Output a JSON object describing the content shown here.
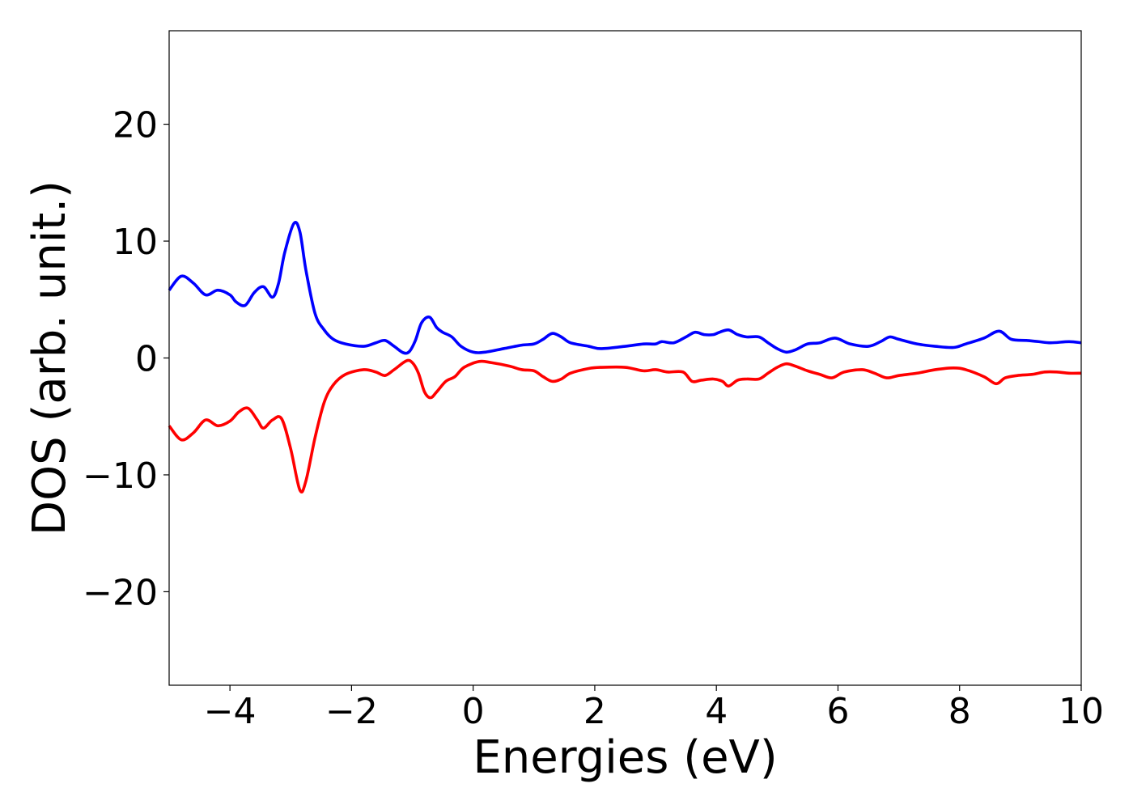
{
  "chart_data": {
    "type": "line",
    "title": "",
    "xlabel": "Energies (eV)",
    "ylabel": "DOS (arb. unit.)",
    "xlim": [
      -5,
      10
    ],
    "ylim": [
      -28,
      28
    ],
    "xticks": [
      -4,
      -2,
      0,
      2,
      4,
      6,
      8,
      10
    ],
    "xtick_labels": [
      "−4",
      "−2",
      "0",
      "2",
      "4",
      "6",
      "8",
      "10"
    ],
    "yticks": [
      -20,
      -10,
      0,
      10,
      20
    ],
    "ytick_labels": [
      "−20",
      "−10",
      "0",
      "10",
      "20"
    ],
    "grid": false,
    "legend": "none",
    "series": [
      {
        "color": "#0000ff",
        "x": [
          -5.0,
          -4.8,
          -4.6,
          -4.4,
          -4.2,
          -4.0,
          -3.9,
          -3.75,
          -3.6,
          -3.45,
          -3.3,
          -3.2,
          -3.1,
          -2.95,
          -2.85,
          -2.75,
          -2.6,
          -2.45,
          -2.3,
          -2.1,
          -1.8,
          -1.6,
          -1.45,
          -1.3,
          -1.15,
          -1.05,
          -0.95,
          -0.85,
          -0.72,
          -0.6,
          -0.5,
          -0.35,
          -0.2,
          0.0,
          0.2,
          0.5,
          0.8,
          1.0,
          1.15,
          1.3,
          1.45,
          1.6,
          1.9,
          2.1,
          2.5,
          2.8,
          3.0,
          3.1,
          3.3,
          3.5,
          3.65,
          3.8,
          3.95,
          4.05,
          4.2,
          4.35,
          4.5,
          4.7,
          4.85,
          5.0,
          5.15,
          5.3,
          5.5,
          5.7,
          5.95,
          6.2,
          6.5,
          6.7,
          6.85,
          7.0,
          7.3,
          7.6,
          7.9,
          8.1,
          8.4,
          8.65,
          8.85,
          9.1,
          9.3,
          9.5,
          9.8,
          10.0
        ],
        "y": [
          5.8,
          7.0,
          6.4,
          5.4,
          5.8,
          5.4,
          4.8,
          4.5,
          5.6,
          6.1,
          5.2,
          6.4,
          9.0,
          11.5,
          10.8,
          7.5,
          3.8,
          2.4,
          1.6,
          1.2,
          1.0,
          1.3,
          1.5,
          1.0,
          0.45,
          0.55,
          1.5,
          3.0,
          3.5,
          2.6,
          2.2,
          1.8,
          1.0,
          0.5,
          0.5,
          0.8,
          1.1,
          1.2,
          1.6,
          2.1,
          1.8,
          1.3,
          1.0,
          0.8,
          1.0,
          1.2,
          1.2,
          1.4,
          1.3,
          1.8,
          2.2,
          2.0,
          2.0,
          2.2,
          2.4,
          2.0,
          1.8,
          1.8,
          1.3,
          0.8,
          0.5,
          0.7,
          1.2,
          1.3,
          1.7,
          1.2,
          1.0,
          1.4,
          1.8,
          1.6,
          1.2,
          1.0,
          0.9,
          1.2,
          1.7,
          2.3,
          1.6,
          1.5,
          1.4,
          1.3,
          1.4,
          1.3
        ]
      },
      {
        "color": "#ff0000",
        "x": [
          -5.0,
          -4.8,
          -4.6,
          -4.4,
          -4.2,
          -4.0,
          -3.85,
          -3.7,
          -3.55,
          -3.45,
          -3.3,
          -3.15,
          -3.0,
          -2.85,
          -2.75,
          -2.6,
          -2.45,
          -2.3,
          -2.1,
          -1.8,
          -1.6,
          -1.45,
          -1.3,
          -1.1,
          -1.0,
          -0.9,
          -0.8,
          -0.7,
          -0.6,
          -0.45,
          -0.3,
          -0.15,
          0.1,
          0.3,
          0.6,
          0.8,
          1.0,
          1.15,
          1.3,
          1.45,
          1.6,
          1.9,
          2.1,
          2.5,
          2.8,
          3.0,
          3.2,
          3.45,
          3.6,
          3.75,
          3.95,
          4.1,
          4.2,
          4.35,
          4.5,
          4.7,
          4.85,
          5.0,
          5.15,
          5.3,
          5.5,
          5.7,
          5.9,
          6.1,
          6.4,
          6.6,
          6.8,
          7.0,
          7.3,
          7.6,
          7.9,
          8.1,
          8.4,
          8.6,
          8.75,
          8.95,
          9.2,
          9.4,
          9.6,
          9.8,
          10.0
        ],
        "y": [
          -5.8,
          -7.0,
          -6.4,
          -5.3,
          -5.8,
          -5.4,
          -4.6,
          -4.3,
          -5.3,
          -6.0,
          -5.3,
          -5.2,
          -7.8,
          -11.3,
          -10.5,
          -6.8,
          -3.8,
          -2.3,
          -1.4,
          -1.0,
          -1.2,
          -1.5,
          -1.0,
          -0.25,
          -0.4,
          -1.3,
          -2.9,
          -3.4,
          -2.9,
          -2.0,
          -1.6,
          -0.8,
          -0.3,
          -0.4,
          -0.7,
          -1.0,
          -1.1,
          -1.6,
          -2.0,
          -1.8,
          -1.3,
          -0.9,
          -0.8,
          -0.8,
          -1.1,
          -1.0,
          -1.2,
          -1.2,
          -2.0,
          -1.9,
          -1.8,
          -2.0,
          -2.4,
          -1.9,
          -1.8,
          -1.8,
          -1.3,
          -0.8,
          -0.5,
          -0.7,
          -1.1,
          -1.4,
          -1.7,
          -1.2,
          -1.0,
          -1.3,
          -1.7,
          -1.5,
          -1.3,
          -1.0,
          -0.85,
          -1.0,
          -1.6,
          -2.2,
          -1.7,
          -1.5,
          -1.4,
          -1.2,
          -1.2,
          -1.3,
          -1.3
        ]
      }
    ]
  }
}
